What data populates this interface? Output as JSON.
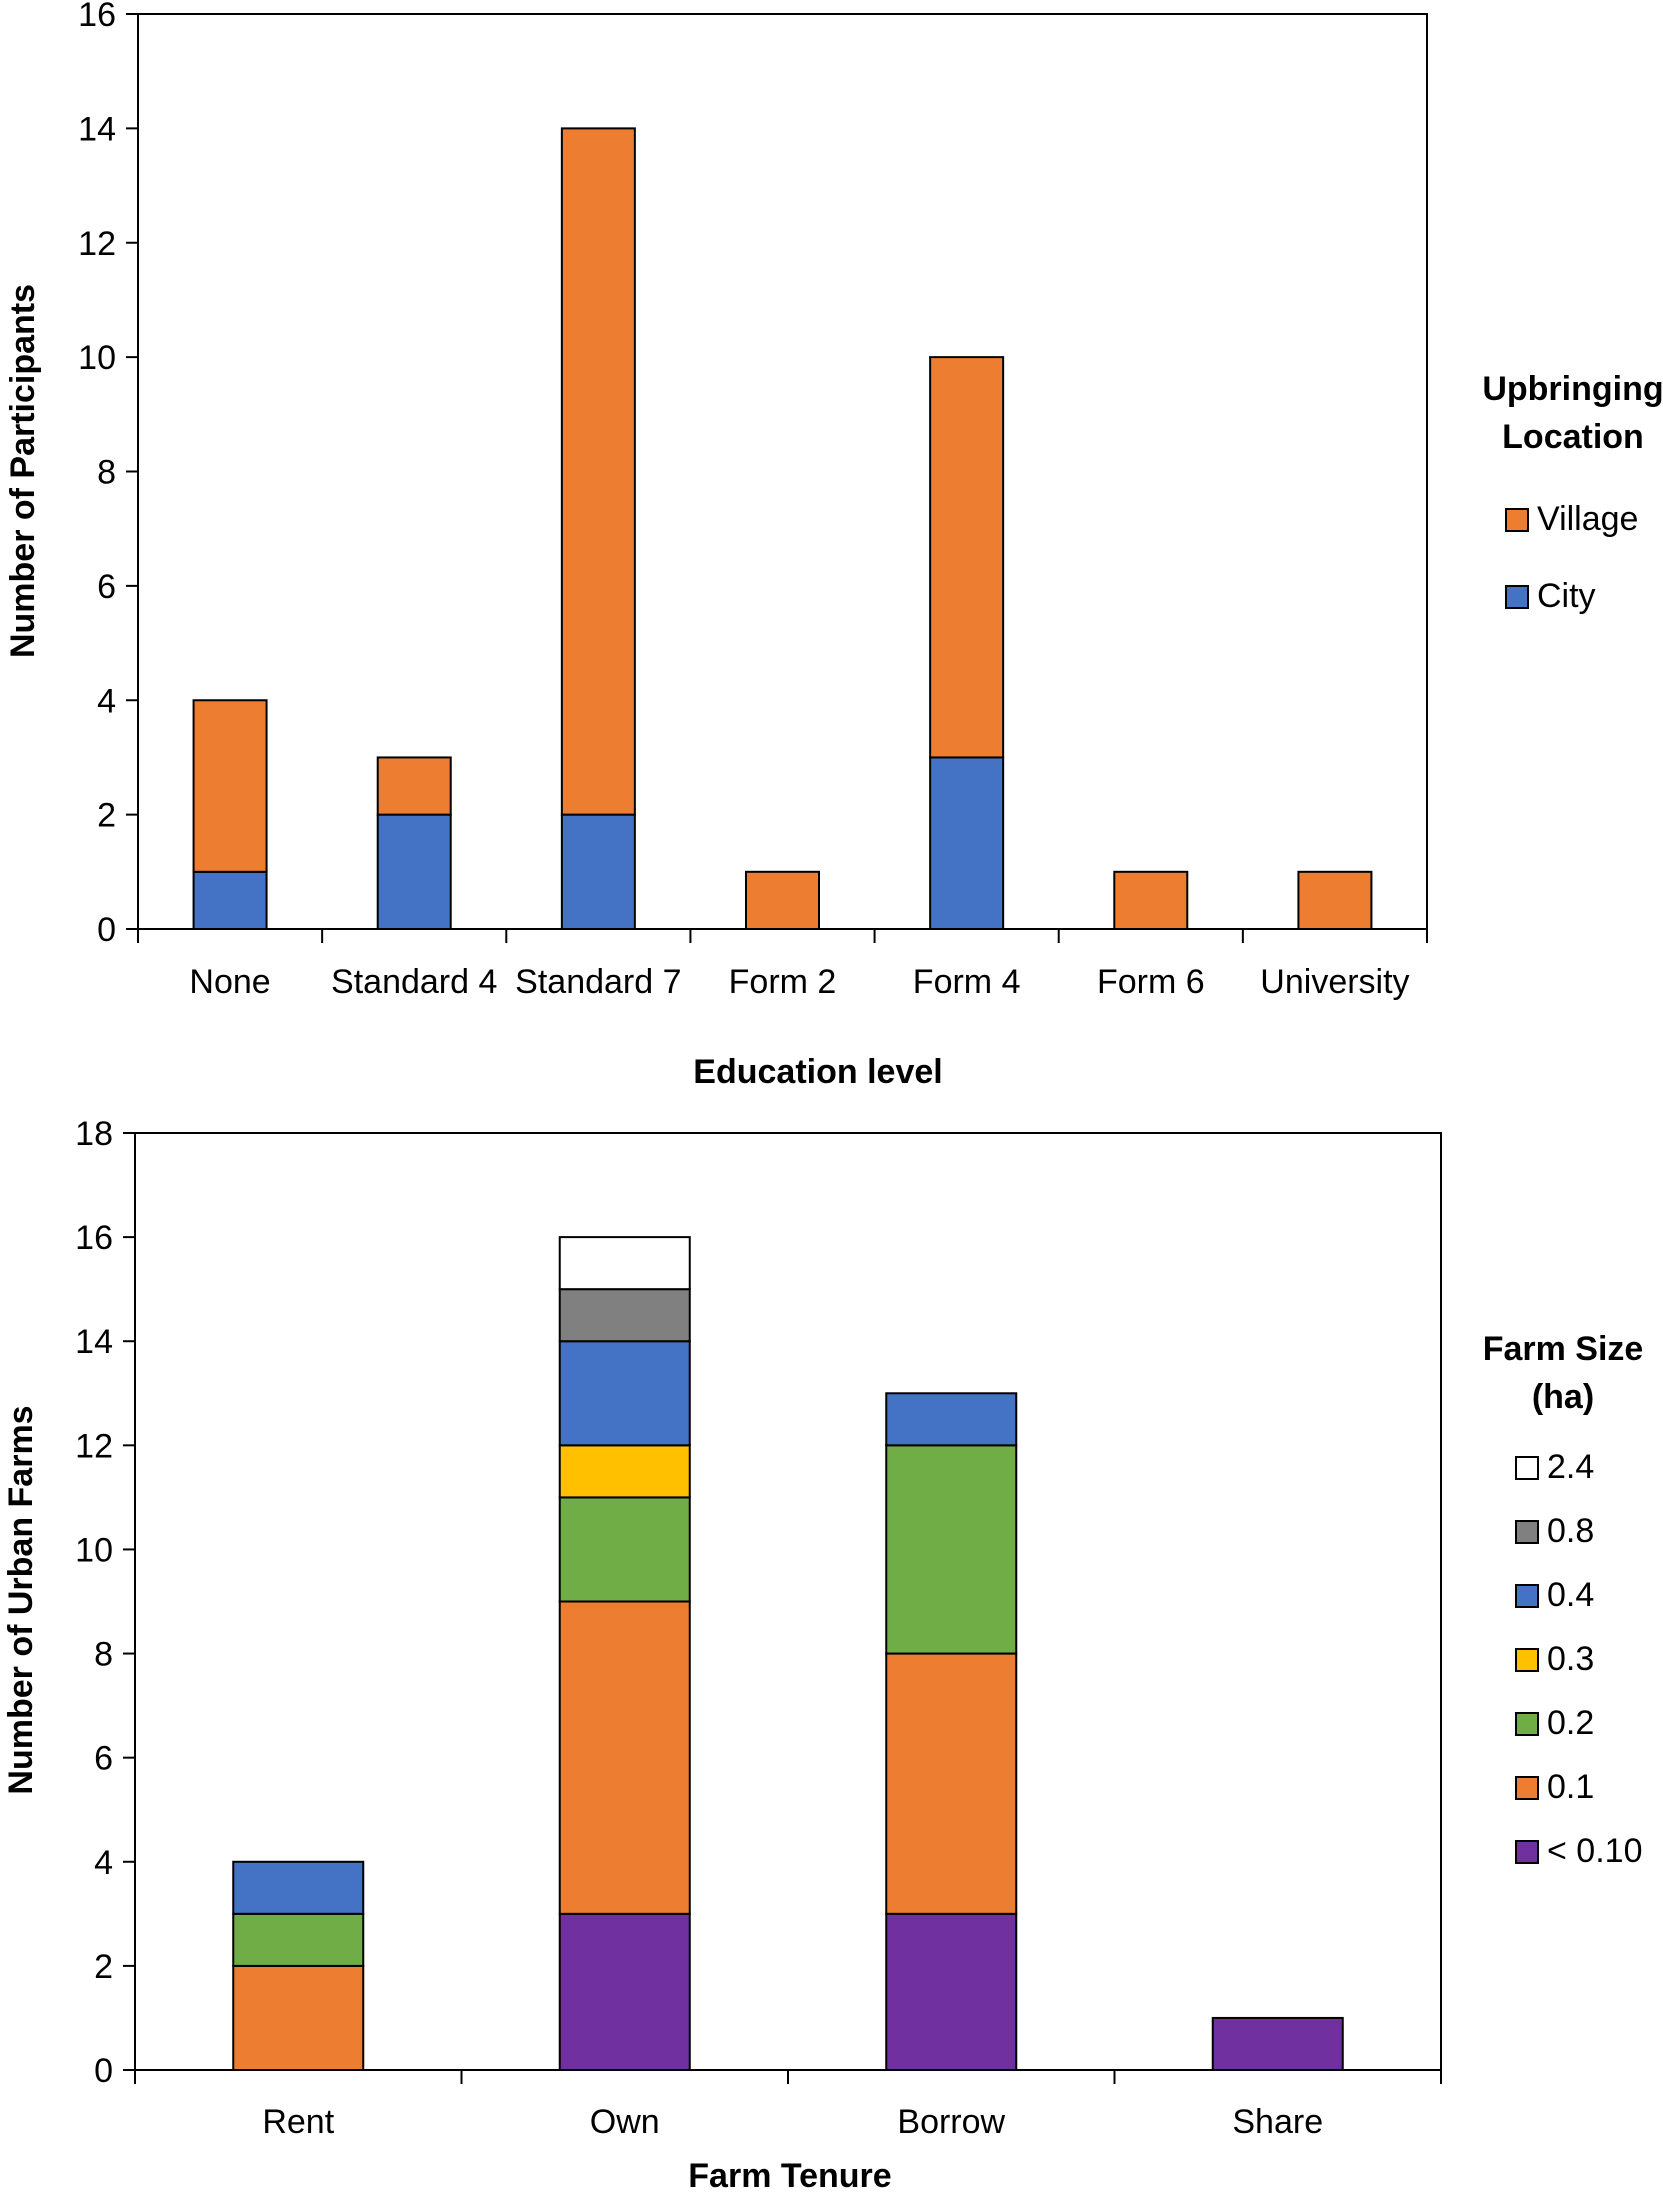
{
  "chart_data": [
    {
      "type": "bar",
      "stacked": true,
      "categories": [
        "None",
        "Standard 4",
        "Standard 7",
        "Form 2",
        "Form 4",
        "Form 6",
        "University"
      ],
      "series": [
        {
          "name": "City",
          "color": "#4472C4",
          "values": [
            1,
            2,
            2,
            0,
            3,
            0,
            0
          ]
        },
        {
          "name": "Village",
          "color": "#ED7D31",
          "values": [
            3,
            1,
            12,
            1,
            7,
            1,
            1
          ]
        }
      ],
      "title": "",
      "xlabel": "Education level",
      "ylabel": "Number of Participants",
      "ylim": [
        0,
        16
      ],
      "yticks": [
        0,
        2,
        4,
        6,
        8,
        10,
        12,
        14,
        16
      ],
      "ytick_labels": [
        "0",
        "2",
        "4",
        "6",
        "8",
        "10",
        "12",
        "14",
        "16"
      ],
      "legend_title_lines": [
        "Upbringing",
        "Location"
      ],
      "legend_order": [
        "Village",
        "City"
      ],
      "legend_position": "right",
      "grid": false
    },
    {
      "type": "bar",
      "stacked": true,
      "categories": [
        "Rent",
        "Own",
        "Borrow",
        "Share"
      ],
      "series": [
        {
          "name": "< 0.10",
          "color": "#7030A0",
          "values": [
            0,
            3,
            3,
            1
          ]
        },
        {
          "name": "0.1",
          "color": "#ED7D31",
          "values": [
            2,
            6,
            5,
            0
          ]
        },
        {
          "name": "0.2",
          "color": "#70AD47",
          "values": [
            1,
            2,
            4,
            0
          ]
        },
        {
          "name": "0.3",
          "color": "#FFC000",
          "values": [
            0,
            1,
            0,
            0
          ]
        },
        {
          "name": "0.4",
          "color": "#4472C4",
          "values": [
            1,
            2,
            1,
            0
          ]
        },
        {
          "name": "0.8",
          "color": "#808080",
          "values": [
            0,
            1,
            0,
            0
          ]
        },
        {
          "name": "2.4",
          "color": "#FFFFFF",
          "values": [
            0,
            1,
            0,
            0
          ]
        }
      ],
      "title": "",
      "xlabel": "Farm Tenure",
      "ylabel": "Number of Urban Farms",
      "ylim": [
        0,
        18
      ],
      "yticks": [
        0,
        2,
        4,
        6,
        8,
        10,
        12,
        14,
        16,
        18
      ],
      "ytick_labels": [
        "0",
        "2",
        "4",
        "6",
        "8",
        "10",
        "12",
        "14",
        "16",
        "18"
      ],
      "legend_title_lines": [
        "Farm Size",
        "(ha)"
      ],
      "legend_order": [
        "2.4",
        "0.8",
        "0.4",
        "0.3",
        "0.2",
        "0.1",
        "< 0.10"
      ],
      "legend_position": "right",
      "grid": false
    }
  ]
}
